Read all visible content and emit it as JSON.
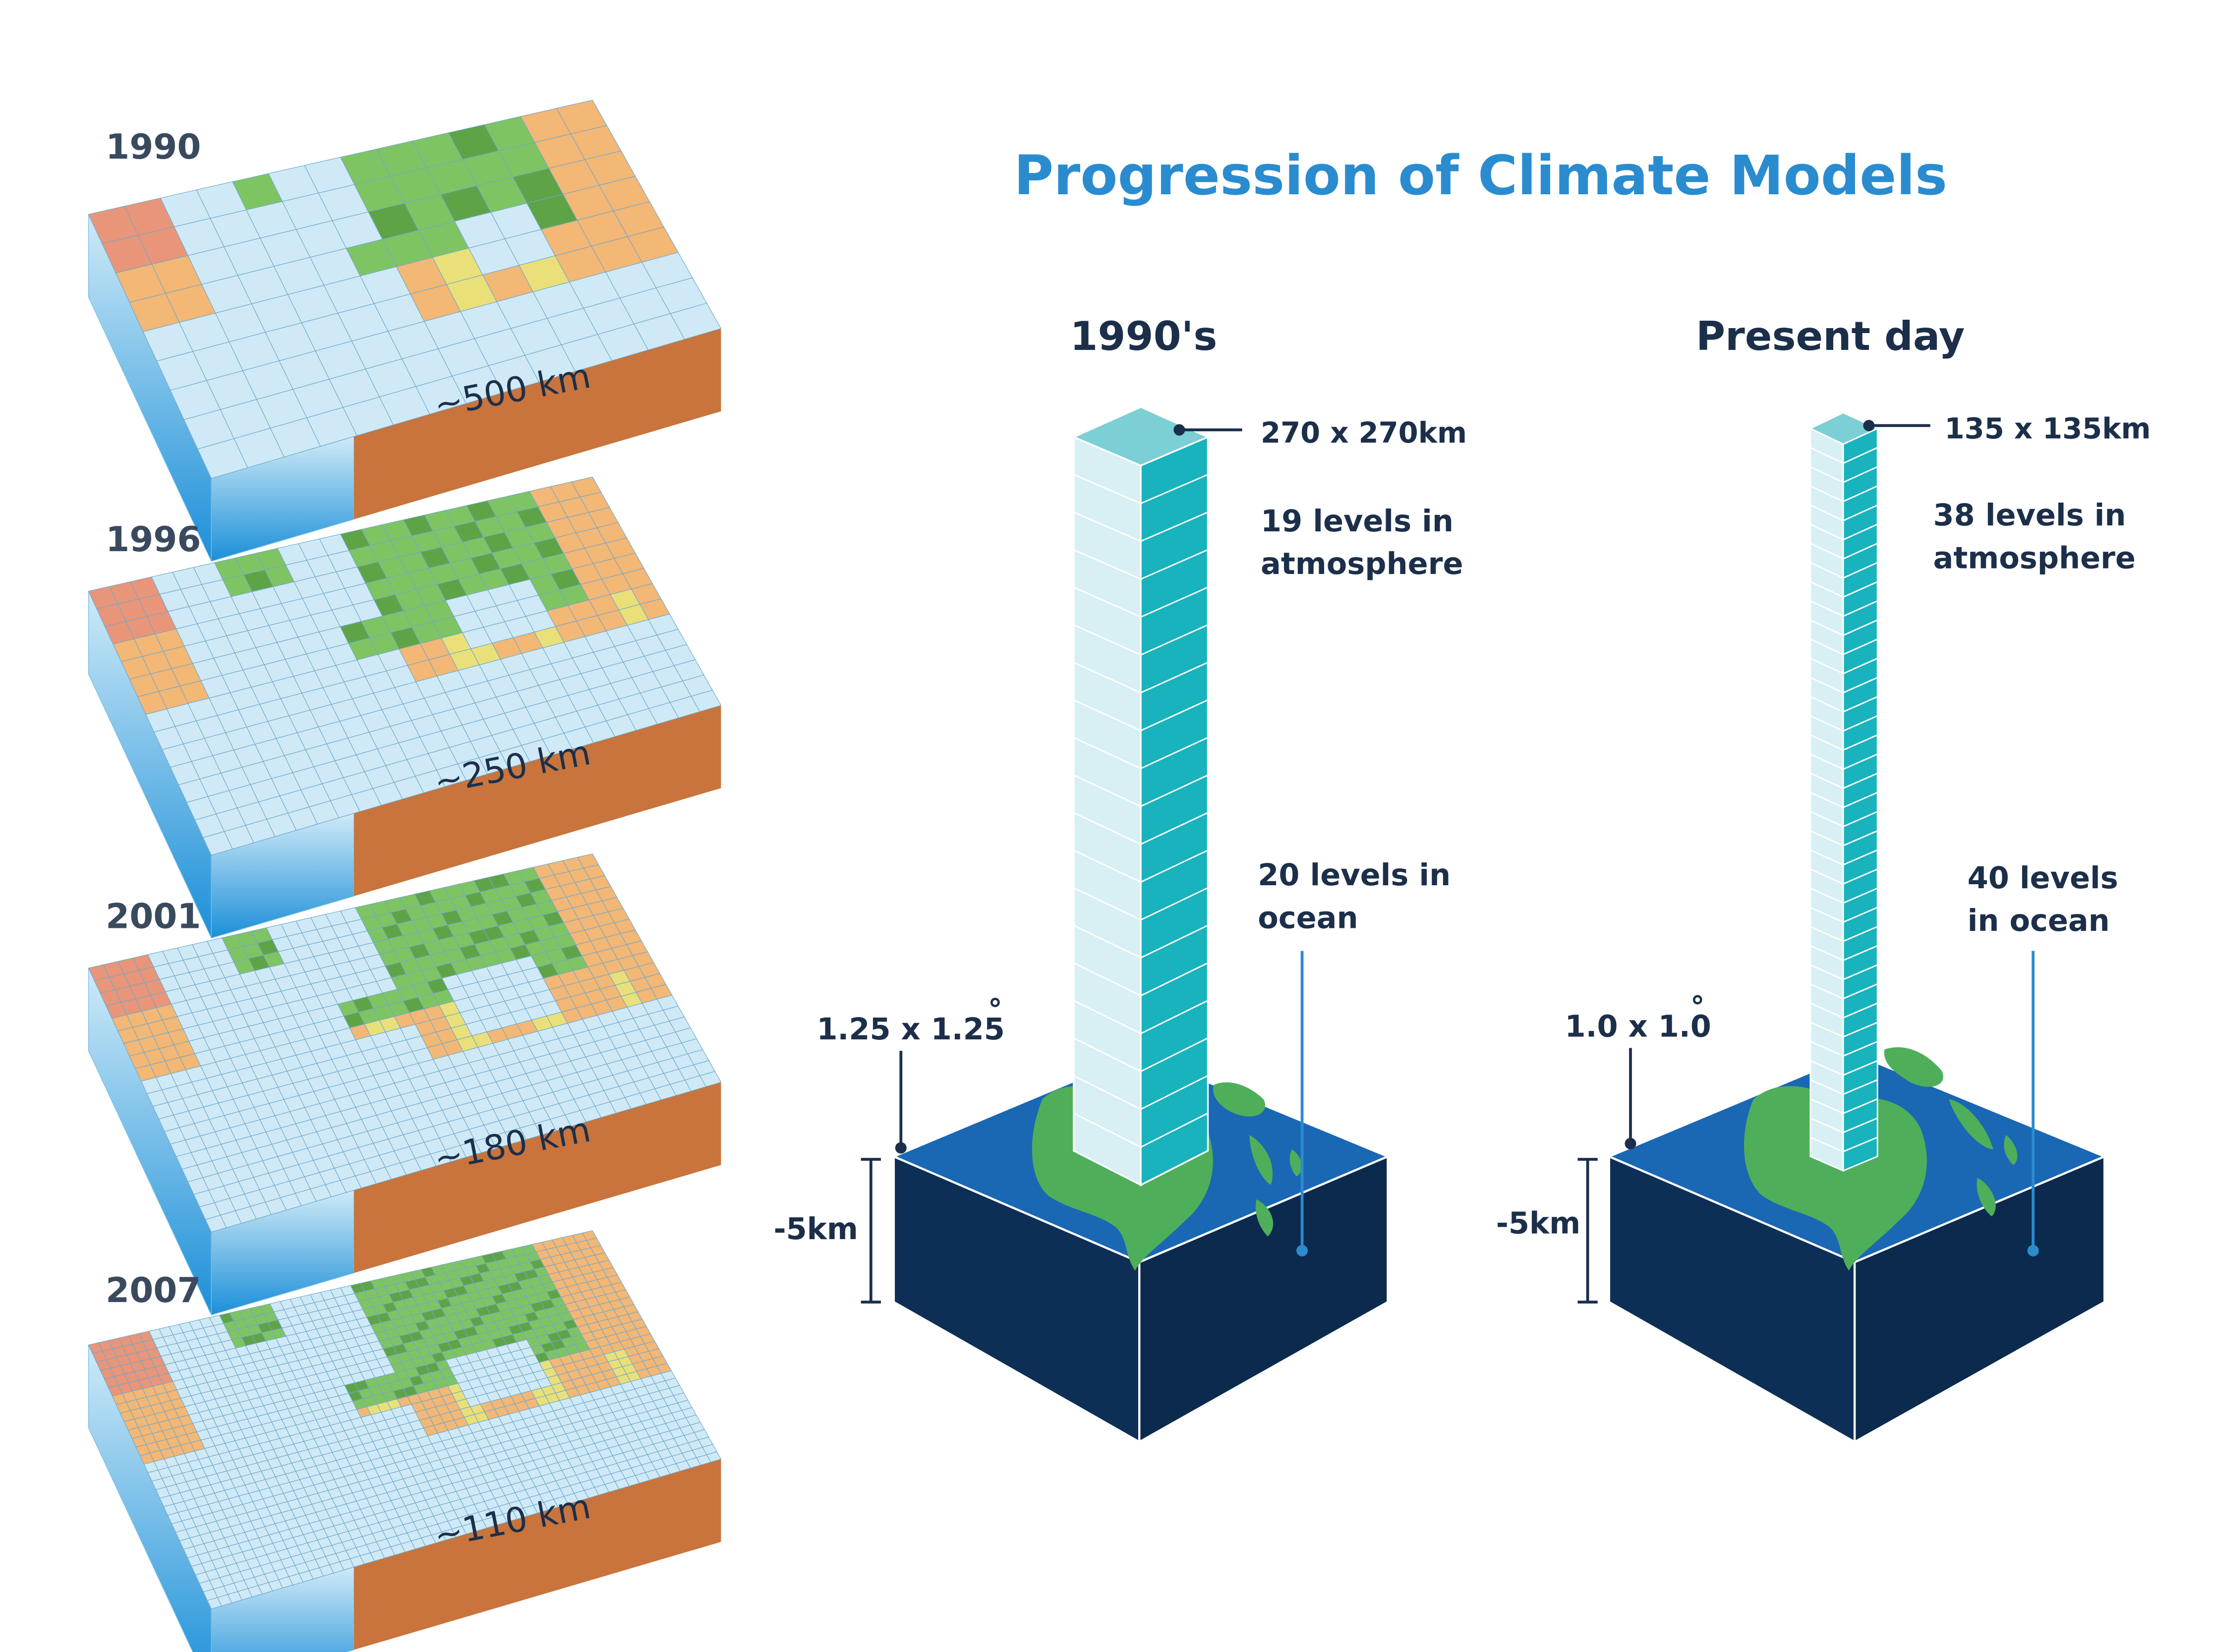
{
  "title": "Progression of Climate Models",
  "colors": {
    "title": "#2a8ccf",
    "label": "#1c2f4a",
    "ocean_light": "#cfe9f7",
    "ocean_top": "#a9d6ef",
    "ocean_side_top": "#bfe4f6",
    "ocean_side_bottom": "#1b8fd8",
    "land_green": "#7fc463",
    "land_green_dark": "#5ea447",
    "land_yellow": "#e9e07a",
    "land_orange": "#f3b776",
    "land_red": "#e9957a",
    "earth_side": "#c8743c",
    "column_light": "#d8f0f3",
    "column_dark": "#18b3bd",
    "column_top": "#7ccfd4",
    "block_top": "#1a67b4",
    "block_side": "#0e2f55",
    "leader_line": "#2a8ccf"
  },
  "grid_maps": [
    {
      "year": "1990",
      "resolution": "~500 km"
    },
    {
      "year": "1996",
      "resolution": "~250 km"
    },
    {
      "year": "2001",
      "resolution": "~180 km"
    },
    {
      "year": "2007",
      "resolution": "~110 km"
    }
  ],
  "columns": [
    {
      "heading": "1990's",
      "size_label": "270 x 270km",
      "atmosphere_label": [
        "19 levels in",
        "atmosphere"
      ],
      "ocean_label": [
        "20 levels in",
        "ocean"
      ],
      "grid_label": "1.25 x 1.25",
      "degree": "°",
      "depth_label": "-5km",
      "levels": 19
    },
    {
      "heading": "Present day",
      "size_label": "135 x 135km",
      "atmosphere_label": [
        "38 levels in",
        "atmosphere"
      ],
      "ocean_label": [
        "40 levels",
        "in ocean"
      ],
      "grid_label": "1.0 x 1.0",
      "degree": "°",
      "depth_label": "-5km",
      "levels": 38
    }
  ]
}
